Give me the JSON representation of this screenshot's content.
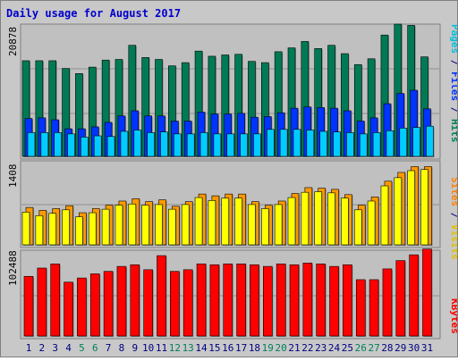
{
  "chart_data": [
    {
      "type": "bar",
      "title": "Daily usage for August 2017",
      "categories": [
        "1",
        "2",
        "3",
        "4",
        "5",
        "6",
        "7",
        "8",
        "9",
        "10",
        "11",
        "12",
        "13",
        "14",
        "15",
        "16",
        "17",
        "18",
        "19",
        "20",
        "21",
        "22",
        "23",
        "24",
        "25",
        "26",
        "27",
        "28",
        "29",
        "30",
        "31"
      ],
      "ylabel": "Pages / Files / Hits",
      "ytick_label": "20878",
      "ymax": 20878,
      "series": [
        {
          "name": "Hits",
          "color": "#007a55",
          "values": [
            14900,
            14900,
            14900,
            13700,
            12900,
            13900,
            15000,
            15100,
            17300,
            15400,
            15100,
            14100,
            14600,
            16400,
            15600,
            15800,
            15900,
            14800,
            14600,
            16300,
            16900,
            17900,
            16800,
            17300,
            16000,
            14300,
            15200,
            18900,
            20600,
            20400,
            15500
          ]
        },
        {
          "name": "Files",
          "color": "#0033ff",
          "values": [
            5900,
            6000,
            5700,
            4300,
            4300,
            4600,
            5300,
            6300,
            7100,
            6300,
            6300,
            5500,
            5500,
            6900,
            6600,
            6600,
            6700,
            6100,
            6200,
            6800,
            7500,
            7700,
            7600,
            7500,
            7100,
            5500,
            6000,
            8200,
            9800,
            10300,
            7400
          ]
        },
        {
          "name": "Pages",
          "color": "#00ccff",
          "values": [
            3700,
            3700,
            3700,
            3500,
            3000,
            3200,
            3100,
            3900,
            4100,
            3700,
            3800,
            3500,
            3500,
            3700,
            3500,
            3500,
            3500,
            3500,
            4200,
            4200,
            4200,
            4100,
            3900,
            3800,
            3700,
            3500,
            3700,
            4000,
            4400,
            4500,
            4700
          ]
        }
      ]
    },
    {
      "type": "bar",
      "categories": [
        "1",
        "2",
        "3",
        "4",
        "5",
        "6",
        "7",
        "8",
        "9",
        "10",
        "11",
        "12",
        "13",
        "14",
        "15",
        "16",
        "17",
        "18",
        "19",
        "20",
        "21",
        "22",
        "23",
        "24",
        "25",
        "26",
        "27",
        "28",
        "29",
        "30",
        "31"
      ],
      "ylabel": "Sites / Visits",
      "ytick_label": "1408",
      "ymax": 1408,
      "series": [
        {
          "name": "Visits",
          "color": "#ff9900",
          "values": [
            640,
            590,
            620,
            670,
            550,
            620,
            680,
            750,
            790,
            740,
            770,
            660,
            740,
            870,
            840,
            870,
            870,
            740,
            680,
            750,
            880,
            980,
            970,
            950,
            860,
            680,
            820,
            1090,
            1240,
            1340,
            1340
          ]
        },
        {
          "name": "Sites",
          "color": "#ffff00",
          "values": [
            560,
            500,
            540,
            600,
            480,
            550,
            610,
            680,
            700,
            680,
            690,
            610,
            690,
            810,
            760,
            800,
            800,
            690,
            620,
            690,
            810,
            900,
            910,
            890,
            800,
            600,
            750,
            1010,
            1150,
            1270,
            1290
          ]
        }
      ]
    },
    {
      "type": "bar",
      "categories": [
        "1",
        "2",
        "3",
        "4",
        "5",
        "6",
        "7",
        "8",
        "9",
        "10",
        "11",
        "12",
        "13",
        "14",
        "15",
        "16",
        "17",
        "18",
        "19",
        "20",
        "21",
        "22",
        "23",
        "24",
        "25",
        "26",
        "27",
        "28",
        "29",
        "30",
        "31"
      ],
      "ylabel": "KBytes",
      "ytick_label": "102488",
      "ymax": 102488,
      "series": [
        {
          "name": "KBytes",
          "color": "#ff0000",
          "values": [
            72000,
            82000,
            87000,
            65000,
            70000,
            75000,
            78000,
            84000,
            86000,
            80000,
            97000,
            78000,
            80000,
            87000,
            86000,
            87000,
            87000,
            86000,
            84000,
            87000,
            86000,
            88000,
            87000,
            84000,
            86000,
            68000,
            68000,
            81000,
            91000,
            98000,
            105000
          ]
        }
      ]
    }
  ],
  "x_label_colors": [
    "#000080",
    "#000080",
    "#000080",
    "#000080",
    "#00805a",
    "#00805a",
    "#000080",
    "#000080",
    "#000080",
    "#000080",
    "#000080",
    "#00805a",
    "#00805a",
    "#000080",
    "#000080",
    "#000080",
    "#000080",
    "#000080",
    "#00805a",
    "#00805a",
    "#000080",
    "#000080",
    "#000080",
    "#000080",
    "#000080",
    "#00805a",
    "#00805a",
    "#000080",
    "#000080",
    "#000080",
    "#000080"
  ],
  "ylabel_parts_top": [
    {
      "text": "Pages",
      "color": "#00c0e0"
    },
    {
      "text": " / ",
      "color": "#000080"
    },
    {
      "text": "Files",
      "color": "#0033ff"
    },
    {
      "text": " / ",
      "color": "#000080"
    },
    {
      "text": "Hits",
      "color": "#00805a"
    }
  ],
  "ylabel_parts_mid": [
    {
      "text": "Sites",
      "color": "#ff8000"
    },
    {
      "text": " / ",
      "color": "#000080"
    },
    {
      "text": "Visits",
      "color": "#e0c000"
    }
  ],
  "ylabel_parts_bot": [
    {
      "text": "KBytes",
      "color": "#ff0000"
    }
  ]
}
